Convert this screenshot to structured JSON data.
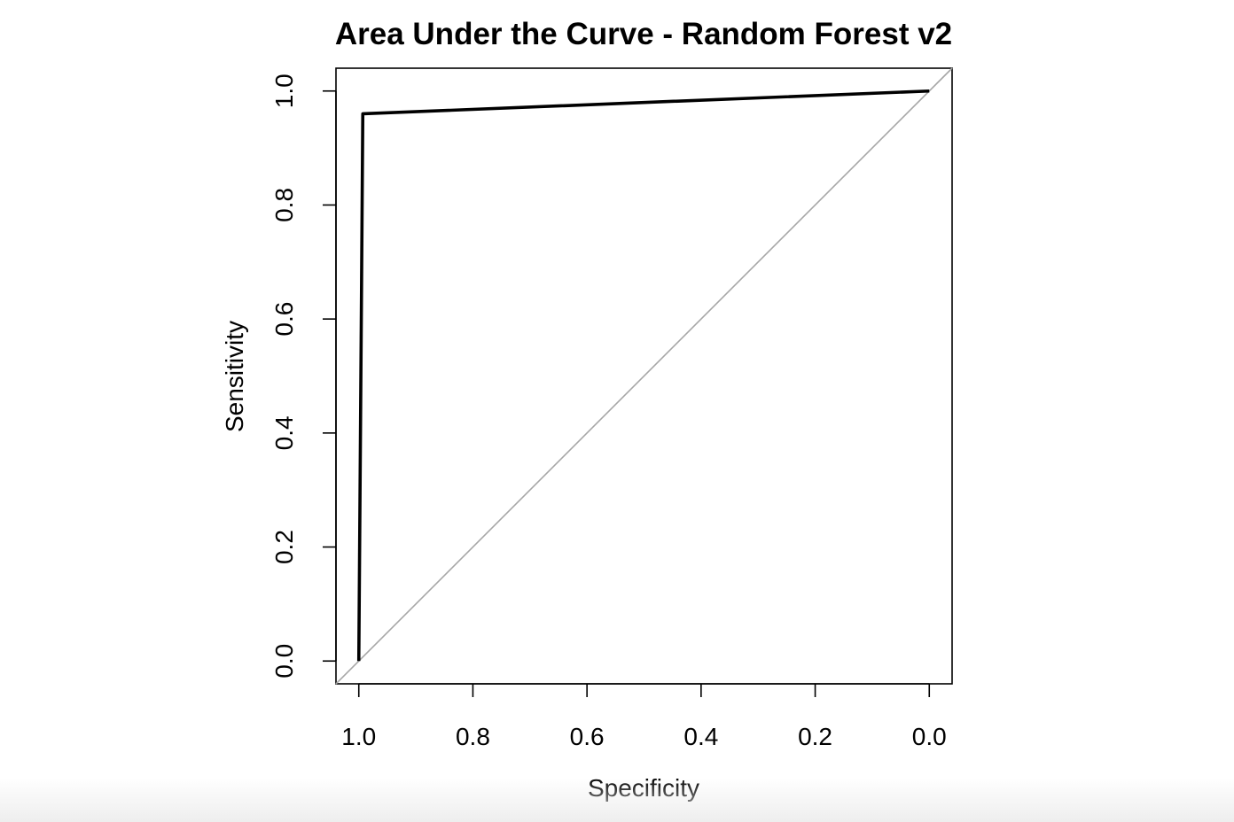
{
  "chart_data": {
    "type": "line",
    "title": "Area Under the Curve - Random Forest v2",
    "xlabel": "Specificity",
    "ylabel": "Sensitivity",
    "xlim": [
      1.04,
      -0.04
    ],
    "ylim": [
      -0.04,
      1.04
    ],
    "x_reversed": true,
    "x_ticks": [
      1.0,
      0.8,
      0.6,
      0.4,
      0.2,
      0.0
    ],
    "x_tick_labels": [
      "1.0",
      "0.8",
      "0.6",
      "0.4",
      "0.2",
      "0.0"
    ],
    "y_ticks": [
      0.0,
      0.2,
      0.4,
      0.6,
      0.8,
      1.0
    ],
    "y_tick_labels": [
      "0.0",
      "0.2",
      "0.4",
      "0.6",
      "0.8",
      "1.0"
    ],
    "grid": false,
    "series": [
      {
        "x": [
          1.0,
          0.993,
          0.0
        ],
        "y": [
          0.0,
          0.96,
          1.0
        ],
        "color": "#000000"
      }
    ],
    "reference_line": {
      "x": [
        1.0,
        0.0
      ],
      "y": [
        0.0,
        1.0
      ],
      "color": "#a6a6a6"
    }
  }
}
